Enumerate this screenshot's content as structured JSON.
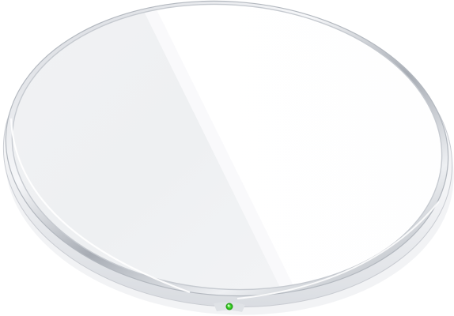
{
  "subject": "wireless-charging-pad",
  "shape": "round",
  "surface": "white-glass",
  "rim": "silver-metal",
  "indicator": {
    "state": "on",
    "color": "#3ecf2a"
  },
  "colors": {
    "background": "#ffffff",
    "top_light": "#fbfbfc",
    "top_shade": "#eceef1",
    "rim_light": "#f4f5f7",
    "rim_dark": "#9ea3ab"
  }
}
